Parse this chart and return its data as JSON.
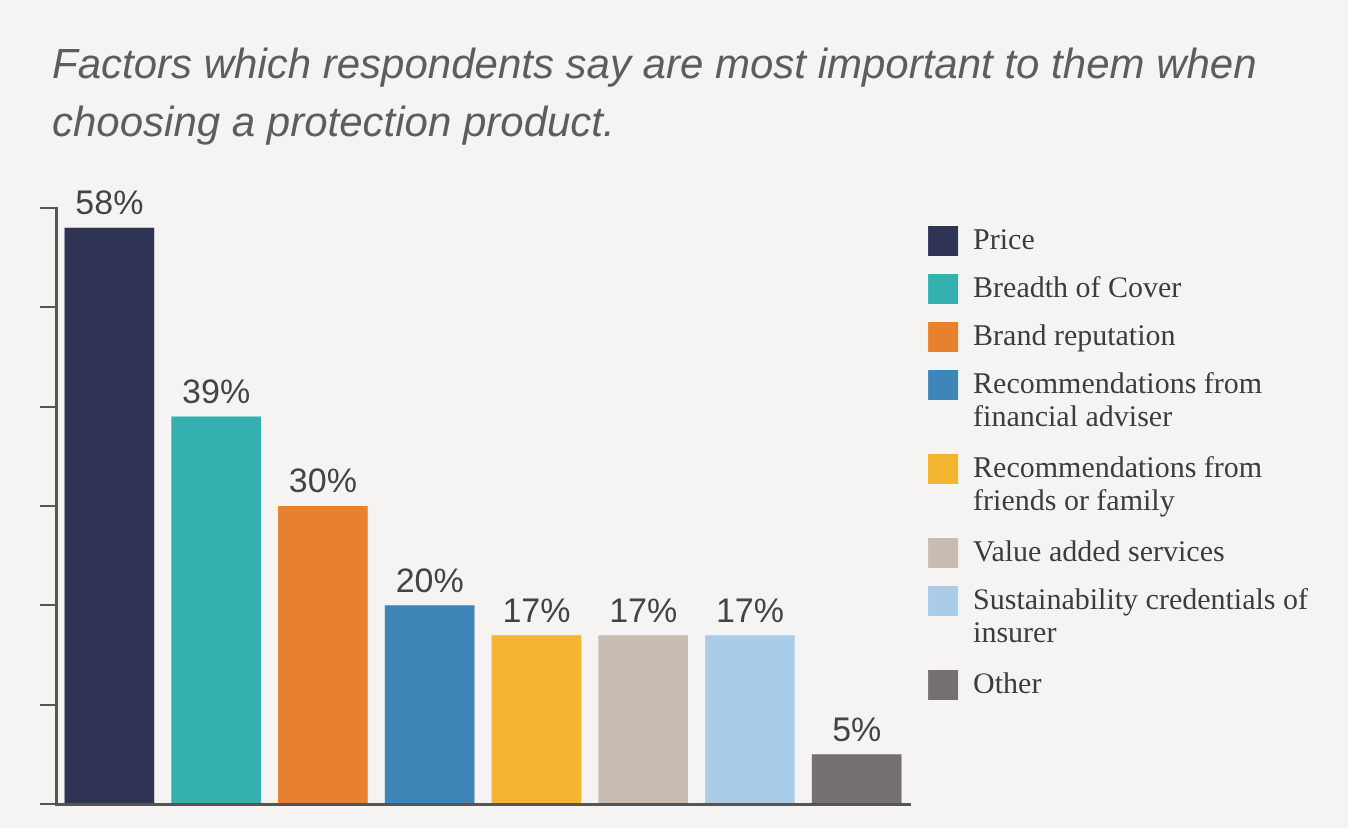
{
  "chart_data": {
    "type": "bar",
    "title": "Factors which respondents say are most important to them when choosing a protection product.",
    "categories": [
      null,
      null,
      null,
      null,
      null,
      null,
      null,
      null
    ],
    "series": [
      {
        "name": "Price",
        "color": "#2f3454",
        "values": [
          58,
          null,
          null,
          null,
          null,
          null,
          null,
          null
        ],
        "value_labels": [
          "58%",
          null,
          null,
          null,
          null,
          null,
          null,
          null
        ]
      },
      {
        "name": "Breadth of Cover",
        "color": "#33b0b0",
        "values": [
          null,
          39,
          null,
          null,
          null,
          null,
          null,
          null
        ],
        "value_labels": [
          null,
          "39%",
          null,
          null,
          null,
          null,
          null,
          null
        ]
      },
      {
        "name": "Brand reputation",
        "color": "#e8812e",
        "values": [
          null,
          null,
          30,
          null,
          null,
          null,
          null,
          null
        ],
        "value_labels": [
          null,
          null,
          "30%",
          null,
          null,
          null,
          null,
          null
        ]
      },
      {
        "name": "Recommendations from financial adviser",
        "color": "#3f86b8",
        "values": [
          null,
          null,
          null,
          20,
          null,
          null,
          null,
          null
        ],
        "value_labels": [
          null,
          null,
          null,
          "20%",
          null,
          null,
          null,
          null
        ]
      },
      {
        "name": "Recommendations from friends or family",
        "color": "#f4b530",
        "values": [
          null,
          null,
          null,
          null,
          17,
          null,
          null,
          null
        ],
        "value_labels": [
          null,
          null,
          null,
          null,
          "17%",
          null,
          null,
          null
        ]
      },
      {
        "name": "Value added services",
        "color": "#c6bcb2",
        "values": [
          null,
          null,
          null,
          null,
          null,
          17,
          null,
          null
        ],
        "value_labels": [
          null,
          null,
          null,
          null,
          null,
          "17%",
          null,
          null
        ]
      },
      {
        "name": "Sustainability credentials of insurer",
        "color": "#a9cde8",
        "values": [
          null,
          null,
          null,
          null,
          null,
          null,
          17,
          null
        ],
        "value_labels": [
          null,
          null,
          null,
          null,
          null,
          null,
          "17%",
          null
        ]
      },
      {
        "name": "Other",
        "color": "#747070",
        "values": [
          null,
          null,
          null,
          null,
          null,
          null,
          null,
          5
        ],
        "value_labels": [
          null,
          null,
          null,
          null,
          null,
          null,
          null,
          "5%"
        ]
      }
    ],
    "ylim": [
      0,
      60
    ],
    "yticks": [
      {
        "value": 0,
        "label": null
      },
      {
        "value": 10,
        "label": null
      },
      {
        "value": 20,
        "label": null
      },
      {
        "value": 30,
        "label": null
      },
      {
        "value": 40,
        "label": null
      },
      {
        "value": 50,
        "label": null
      },
      {
        "value": 60,
        "label": null
      }
    ],
    "tick_labels": false,
    "grid": false,
    "legend": "right",
    "stacked": true
  }
}
